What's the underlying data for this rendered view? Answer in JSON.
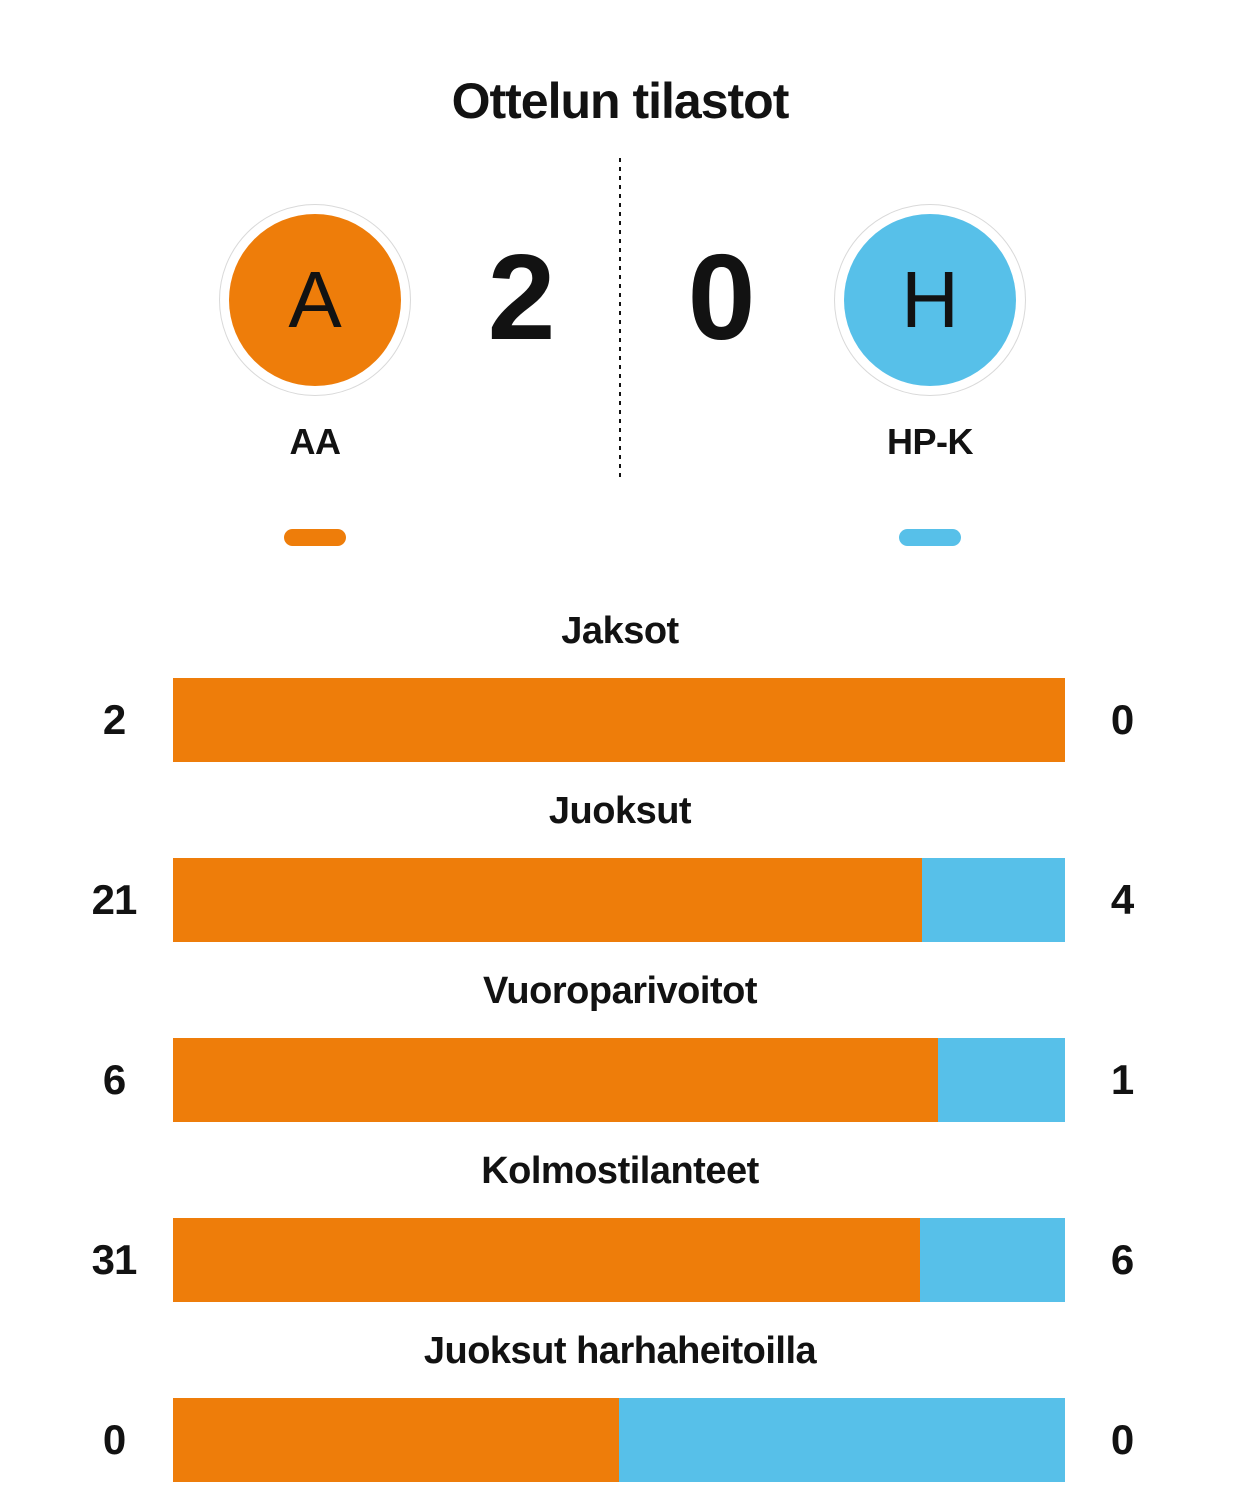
{
  "title": "Ottelun tilastot",
  "colors": {
    "home": "#ee7d0a",
    "away": "#57c0e9"
  },
  "scoreboard": {
    "home": {
      "initial": "A",
      "name": "AA",
      "score": "2"
    },
    "away": {
      "initial": "H",
      "name": "HP-K",
      "score": "0"
    }
  },
  "stats": [
    {
      "label": "Jaksot",
      "home": 2,
      "away": 0
    },
    {
      "label": "Juoksut",
      "home": 21,
      "away": 4
    },
    {
      "label": "Vuoroparivoitot",
      "home": 6,
      "away": 1
    },
    {
      "label": "Kolmostilanteet",
      "home": 31,
      "away": 6
    },
    {
      "label": "Juoksut harhaheitoilla",
      "home": 0,
      "away": 0
    }
  ],
  "chart_data": {
    "type": "bar",
    "title": "Ottelun tilastot",
    "orientation": "horizontal-paired-share",
    "categories": [
      "Jaksot",
      "Juoksut",
      "Vuoroparivoitot",
      "Kolmostilanteet",
      "Juoksut harhaheitoilla"
    ],
    "series": [
      {
        "name": "AA",
        "color": "#ee7d0a",
        "values": [
          2,
          21,
          6,
          31,
          0
        ]
      },
      {
        "name": "HP-K",
        "color": "#57c0e9",
        "values": [
          0,
          4,
          1,
          6,
          0
        ]
      }
    ],
    "score": {
      "home_team": "AA",
      "home_score": 2,
      "away_team": "HP-K",
      "away_score": 0
    },
    "legend_position": "top",
    "grid": false
  }
}
